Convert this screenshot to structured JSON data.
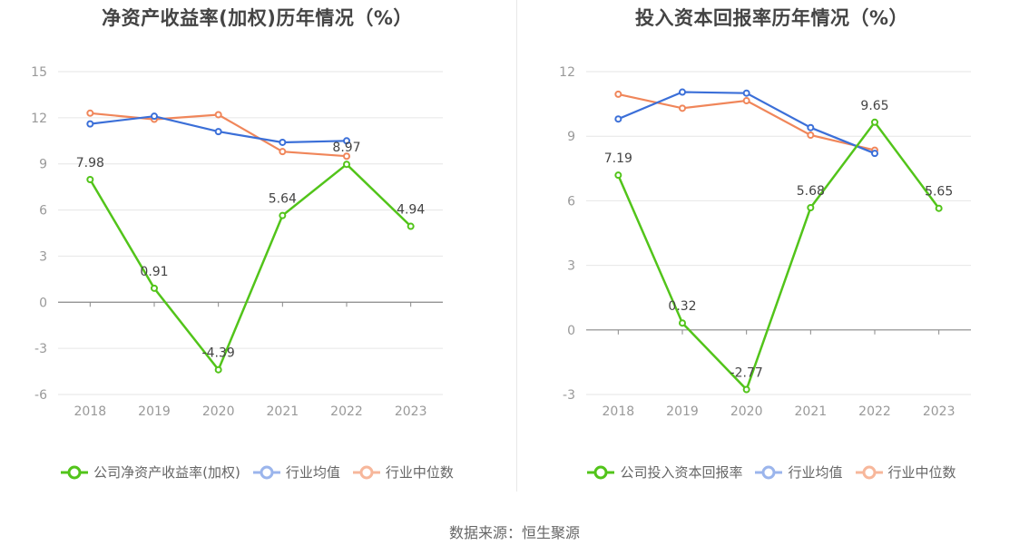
{
  "source_text": "数据来源：恒生聚源",
  "charts": [
    {
      "title": "净资产收益率(加权)历年情况（%）",
      "legend": [
        "公司净资产收益率(加权)",
        "行业均值",
        "行业中位数"
      ]
    },
    {
      "title": "投入资本回报率历年情况（%）",
      "legend": [
        "公司投入资本回报率",
        "行业均值",
        "行业中位数"
      ]
    }
  ],
  "colors": {
    "company": "#52c41a",
    "industry_mean": "#3b6fd8",
    "industry_median": "#f0865a"
  },
  "chart_data": [
    {
      "type": "line",
      "title": "净资产收益率(加权)历年情况（%）",
      "categories": [
        "2018",
        "2019",
        "2020",
        "2021",
        "2022",
        "2023"
      ],
      "ylim": [
        -6,
        15
      ],
      "yticks": [
        "15",
        "12",
        "9",
        "6",
        "3",
        "0",
        "-3",
        "-6"
      ],
      "grid": true,
      "legend_position": "bottom",
      "series": [
        {
          "name": "公司净资产收益率(加权)",
          "values": [
            7.98,
            0.91,
            -4.39,
            5.64,
            8.97,
            4.94
          ],
          "labels": [
            "7.98",
            "0.91",
            "-4.39",
            "5.64",
            "8.97",
            "4.94"
          ]
        },
        {
          "name": "行业均值",
          "values": [
            11.6,
            12.1,
            11.1,
            10.4,
            10.5,
            null
          ]
        },
        {
          "name": "行业中位数",
          "values": [
            12.3,
            11.9,
            12.2,
            9.8,
            9.5,
            null
          ]
        }
      ]
    },
    {
      "type": "line",
      "title": "投入资本回报率历年情况（%）",
      "categories": [
        "2018",
        "2019",
        "2020",
        "2021",
        "2022",
        "2023"
      ],
      "ylim": [
        -3,
        12
      ],
      "yticks": [
        "12",
        "9",
        "6",
        "3",
        "0",
        "-3"
      ],
      "grid": true,
      "legend_position": "bottom",
      "series": [
        {
          "name": "公司投入资本回报率",
          "values": [
            7.19,
            0.32,
            -2.77,
            5.68,
            9.65,
            5.65
          ],
          "labels": [
            "7.19",
            "0.32",
            "-2.77",
            "5.68",
            "9.65",
            "5.65"
          ]
        },
        {
          "name": "行业均值",
          "values": [
            9.8,
            11.05,
            11.0,
            9.4,
            8.2,
            null
          ]
        },
        {
          "name": "行业中位数",
          "values": [
            10.95,
            10.3,
            10.65,
            9.05,
            8.35,
            null
          ]
        }
      ]
    }
  ]
}
